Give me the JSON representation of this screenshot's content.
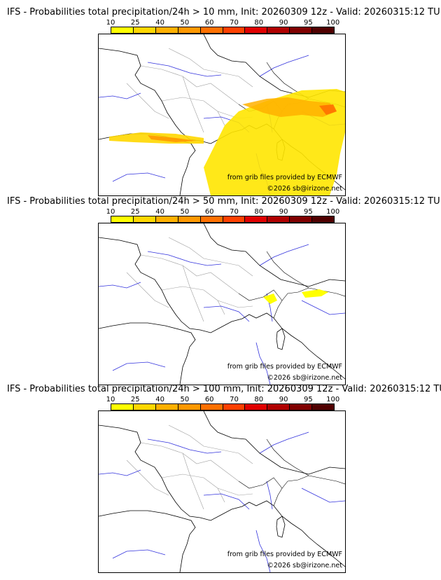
{
  "panels": [
    {
      "title": "IFS - Probabilities total precipitation/24h > 10 mm, Init: 20260309 12z - Valid: 20260315:12 TU",
      "threshold": "10 mm",
      "credit_source": "from grib files provided by ECMWF",
      "credit_copyright": "©2026 sb@irizone.net"
    },
    {
      "title": "IFS - Probabilities total precipitation/24h > 50 mm, Init: 20260309 12z - Valid: 20260315:12 TU",
      "threshold": "50 mm",
      "credit_source": "from grib files provided by ECMWF",
      "credit_copyright": "©2026 sb@irizone.net"
    },
    {
      "title": "IFS - Probabilities total precipitation/24h > 100 mm, Init: 20260309 12z - Valid: 20260315:12 TU",
      "threshold": "100 mm",
      "credit_source": "from grib files provided by ECMWF",
      "credit_copyright": "©2026 sb@irizone.net"
    }
  ],
  "colorbar": {
    "labels": [
      "10",
      "25",
      "40",
      "50",
      "60",
      "70",
      "80",
      "90",
      "95",
      "100"
    ],
    "colors": [
      "#ffff00",
      "#ffd700",
      "#ffb000",
      "#ff9800",
      "#ff7000",
      "#ff4000",
      "#e00000",
      "#b00000",
      "#800000",
      "#500000"
    ]
  },
  "colors": {
    "land_border": "#000000",
    "region_border": "#a0a0a0",
    "river": "#3333dd"
  }
}
